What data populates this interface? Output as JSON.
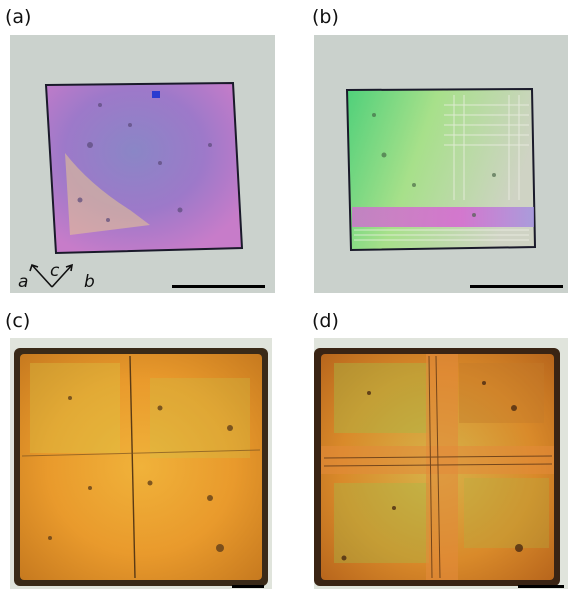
{
  "figure": {
    "panels": [
      {
        "label": "(a)",
        "background": "#c9d1cc",
        "crystal_color": "#9a78c8"
      },
      {
        "label": "(b)",
        "background": "#c8d0cb",
        "crystal_color": "#8fd08a"
      },
      {
        "label": "(c)",
        "background": "#dfe3dc",
        "crystal_color": "#e8a02f"
      },
      {
        "label": "(d)",
        "background": "#dfe3dc",
        "crystal_color": "#d98a2a"
      }
    ],
    "axes": {
      "a": "a",
      "c": "c",
      "b": "b"
    }
  }
}
